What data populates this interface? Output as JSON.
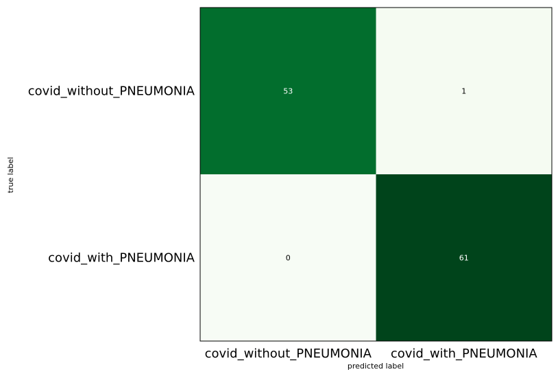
{
  "chart_data": {
    "type": "heatmap",
    "title": "",
    "xlabel": "predicted label",
    "ylabel": "true label",
    "x_categories": [
      "covid_without_PNEUMONIA",
      "covid_with_PNEUMONIA"
    ],
    "y_categories": [
      "covid_without_PNEUMONIA",
      "covid_with_PNEUMONIA"
    ],
    "values": [
      [
        53,
        1
      ],
      [
        0,
        61
      ]
    ],
    "colormap": "Greens",
    "colors": {
      "low": "#f7fcf5",
      "high": "#00441b",
      "light_text": "#ffffff",
      "dark_text": "#000000"
    },
    "grid": false,
    "colorbar": false
  }
}
